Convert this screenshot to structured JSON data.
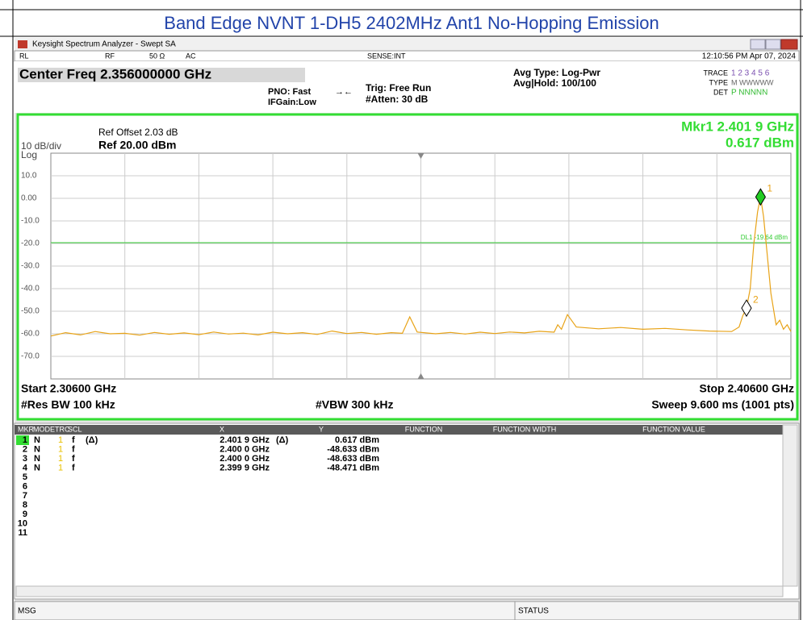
{
  "page_title": "Band Edge NVNT 1-DH5 2402MHz Ant1 No-Hopping Emission",
  "window": {
    "title": "Keysight Spectrum Analyzer - Swept SA",
    "status_items": [
      "RL",
      "RF",
      "50 Ω",
      "AC",
      "SENSE:INT"
    ],
    "datetime": "12:10:56 PM Apr 07, 2024"
  },
  "settings": {
    "center_freq": "Center Freq 2.356000000 GHz",
    "pno": "PNO: Fast",
    "ifgain": "IFGain:Low",
    "trig": "Trig: Free Run",
    "atten": "#Atten: 30 dB",
    "avg_type": "Avg Type: Log-Pwr",
    "avg_hold": "Avg|Hold: 100/100",
    "trace_label": "TRACE",
    "trace_nums": "1 2 3 4 5 6",
    "type_label": "TYPE",
    "type_value": "M WWWWW",
    "det_label": "DET",
    "det_value": "P NNNNN"
  },
  "plot": {
    "ref_offset": "Ref Offset 2.03 dB",
    "scale": "10 dB/div",
    "ref_level": "Ref 20.00 dBm",
    "scale_type": "Log",
    "marker_readout": [
      "Mkr1 2.401 9 GHz",
      "0.617 dBm"
    ],
    "display_line_label": "DL1 -19.64 dBm",
    "display_line": -19.64,
    "xlim": [
      2.306,
      2.406
    ],
    "ylim": [
      -80,
      20
    ],
    "yticks": [
      {
        "value": 10,
        "label": "10.0"
      },
      {
        "value": 0,
        "label": "0.00"
      },
      {
        "value": -10,
        "label": "-10.0"
      },
      {
        "value": -20,
        "label": "-20.0"
      },
      {
        "value": -30,
        "label": "-30.0"
      },
      {
        "value": -40,
        "label": "-40.0"
      },
      {
        "value": -50,
        "label": "-50.0"
      },
      {
        "value": -60,
        "label": "-60.0"
      },
      {
        "value": -70,
        "label": "-70.0"
      }
    ],
    "trace": {
      "color": "#e8a317",
      "x": [
        2.306,
        2.308,
        2.31,
        2.312,
        2.314,
        2.316,
        2.318,
        2.32,
        2.322,
        2.324,
        2.326,
        2.328,
        2.33,
        2.332,
        2.334,
        2.336,
        2.338,
        2.34,
        2.342,
        2.344,
        2.346,
        2.348,
        2.35,
        2.352,
        2.3535,
        2.3545,
        2.3555,
        2.358,
        2.36,
        2.362,
        2.364,
        2.366,
        2.368,
        2.37,
        2.372,
        2.374,
        2.3745,
        2.375,
        2.3758,
        2.377,
        2.38,
        2.383,
        2.386,
        2.389,
        2.392,
        2.395,
        2.398,
        2.399,
        2.3995,
        2.4,
        2.4005,
        2.401,
        2.4015,
        2.4019,
        2.4023,
        2.4028,
        2.4033,
        2.4038,
        2.404,
        2.4045,
        2.405,
        2.4055,
        2.406
      ],
      "y": [
        -61,
        -59.5,
        -60.5,
        -59,
        -60,
        -59.8,
        -60.6,
        -59.4,
        -60.2,
        -59.6,
        -60.4,
        -59.2,
        -60.1,
        -59.7,
        -60.5,
        -59.3,
        -60,
        -59.5,
        -60.3,
        -58.8,
        -59.9,
        -59.4,
        -60.2,
        -59.5,
        -59.8,
        -52.5,
        -59.2,
        -60,
        -59.4,
        -60.1,
        -59.3,
        -59.9,
        -59.2,
        -59.6,
        -58.9,
        -59.3,
        -56,
        -58,
        -51.5,
        -57,
        -57.8,
        -57.2,
        -58,
        -57.6,
        -58.3,
        -58.8,
        -59,
        -57,
        -52,
        -48.6,
        -40,
        -20,
        -6,
        0.617,
        -8,
        -25,
        -42,
        -52,
        -56,
        -54,
        -58,
        -56,
        -59
      ]
    },
    "markers": [
      {
        "label": "1",
        "x": 2.4019,
        "y": 0.617,
        "color": "#22cc22"
      },
      {
        "label": "2",
        "x": 2.4,
        "y": -48.633,
        "color": "#ffffff"
      }
    ],
    "start": "Start 2.30600 GHz",
    "stop": "Stop 2.40600 GHz",
    "rbw": "#Res BW 100 kHz",
    "vbw": "#VBW 300 kHz",
    "sweep": "Sweep  9.600 ms (1001 pts)"
  },
  "marker_table": {
    "columns": [
      "MKR",
      "MODE",
      "TRC",
      "SCL",
      "X",
      "Y",
      "FUNCTION",
      "FUNCTION WIDTH",
      "FUNCTION VALUE"
    ],
    "rows": [
      {
        "mkr": "1",
        "mode": "N",
        "trc": "1",
        "scl": "f",
        "x_delta": "(Δ)",
        "x": "2.401 9 GHz",
        "y_delta": "(Δ)",
        "y": "0.617 dBm"
      },
      {
        "mkr": "2",
        "mode": "N",
        "trc": "1",
        "scl": "f",
        "x": "2.400 0 GHz",
        "y": "-48.633 dBm"
      },
      {
        "mkr": "3",
        "mode": "N",
        "trc": "1",
        "scl": "f",
        "x": "2.400 0 GHz",
        "y": "-48.633 dBm"
      },
      {
        "mkr": "4",
        "mode": "N",
        "trc": "1",
        "scl": "f",
        "x": "2.399 9 GHz",
        "y": "-48.471 dBm"
      }
    ],
    "empty_rows": [
      "5",
      "6",
      "7",
      "8",
      "9",
      "10",
      "11"
    ]
  },
  "status": {
    "msg": "MSG",
    "status": "STATUS"
  }
}
